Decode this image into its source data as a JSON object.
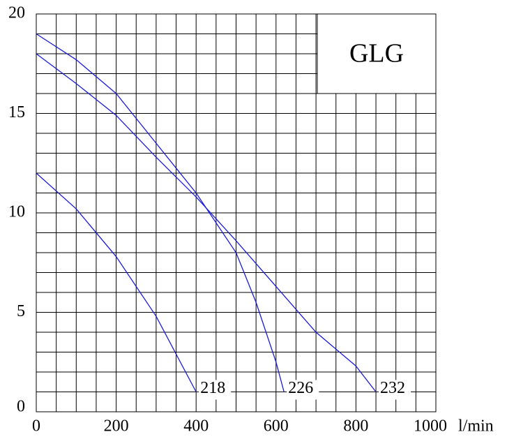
{
  "chart_data": {
    "type": "line",
    "title": "GLG",
    "xlabel": "l/min",
    "xlim": [
      0,
      1000
    ],
    "ylim": [
      0,
      20
    ],
    "xticks": [
      0,
      200,
      400,
      600,
      800,
      1000
    ],
    "yticks": [
      0,
      5,
      10,
      15,
      20
    ],
    "xgrid": [
      0,
      50,
      100,
      150,
      200,
      250,
      300,
      350,
      400,
      450,
      500,
      550,
      600,
      650,
      700,
      750,
      800,
      850,
      900,
      950,
      1000
    ],
    "ygrid": [
      0,
      1,
      2,
      3,
      4,
      5,
      6,
      7,
      8,
      9,
      10,
      11,
      12,
      13,
      14,
      15,
      16,
      17,
      18,
      19,
      20
    ],
    "grid": true,
    "series": [
      {
        "name": "218",
        "color": "#1a1adc",
        "x": [
          0,
          100,
          200,
          300,
          400
        ],
        "values": [
          12,
          10.2,
          7.8,
          4.8,
          1
        ]
      },
      {
        "name": "226",
        "color": "#1a1adc",
        "x": [
          0,
          100,
          200,
          300,
          400,
          500,
          550,
          600,
          620
        ],
        "values": [
          19,
          17.7,
          16,
          13.5,
          11,
          8,
          5.5,
          2.5,
          1
        ]
      },
      {
        "name": "232",
        "color": "#1a1adc",
        "x": [
          0,
          100,
          200,
          300,
          400,
          500,
          600,
          700,
          800,
          850
        ],
        "values": [
          18,
          16.5,
          14.9,
          12.8,
          10.8,
          8.6,
          6.3,
          4,
          2.3,
          1
        ]
      }
    ]
  }
}
